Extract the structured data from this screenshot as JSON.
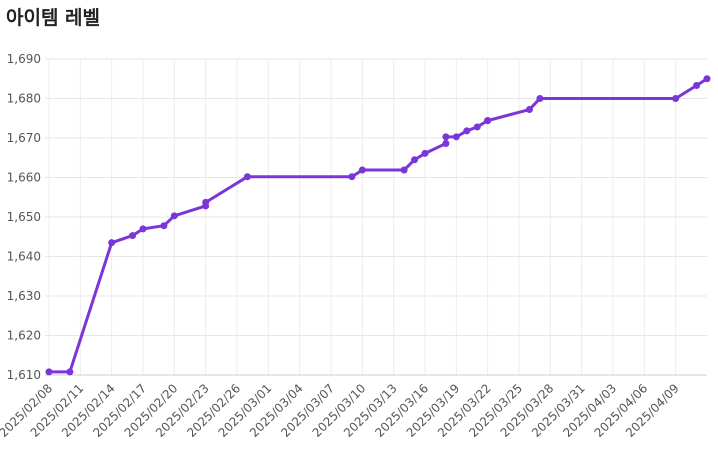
{
  "chart_data": {
    "type": "line",
    "title": "아이템 레벨",
    "x": [
      "2025/02/08",
      "2025/02/10",
      "2025/02/14",
      "2025/02/16",
      "2025/02/17",
      "2025/02/19",
      "2025/02/20",
      "2025/02/23",
      "2025/02/23",
      "2025/02/27",
      "2025/03/09",
      "2025/03/10",
      "2025/03/14",
      "2025/03/15",
      "2025/03/16",
      "2025/03/18",
      "2025/03/18",
      "2025/03/19",
      "2025/03/20",
      "2025/03/21",
      "2025/03/22",
      "2025/03/22",
      "2025/03/26",
      "2025/03/27",
      "2025/04/09",
      "2025/04/11",
      "2025/04/12"
    ],
    "series": [
      {
        "name": "아이템 레벨",
        "color": "#7b35d9",
        "values": [
          1610.8,
          1610.8,
          1643.5,
          1645.3,
          1647,
          1647.8,
          1650.3,
          1652.8,
          1653.7,
          1660.2,
          1660.2,
          1661.9,
          1661.9,
          1664.5,
          1666.1,
          1668.6,
          1670.3,
          1670.3,
          1671.8,
          1672.8,
          1674.4,
          1674.4,
          1677.2,
          1680,
          1680,
          1683.3,
          1685
        ]
      }
    ],
    "xlim": [
      "2025/02/08",
      "2025/04/12"
    ],
    "xticks": [
      "2025/02/08",
      "2025/02/11",
      "2025/02/14",
      "2025/02/17",
      "2025/02/20",
      "2025/02/23",
      "2025/02/26",
      "2025/03/01",
      "2025/03/04",
      "2025/03/07",
      "2025/03/10",
      "2025/03/13",
      "2025/03/16",
      "2025/03/19",
      "2025/03/22",
      "2025/03/25",
      "2025/03/28",
      "2025/03/31",
      "2025/04/03",
      "2025/04/06",
      "2025/04/09"
    ],
    "ylim": [
      1610,
      1690
    ],
    "yticks": [
      {
        "value": 1610,
        "label": "1,610"
      },
      {
        "value": 1620,
        "label": "1,620"
      },
      {
        "value": 1630,
        "label": "1,630"
      },
      {
        "value": 1640,
        "label": "1,640"
      },
      {
        "value": 1650,
        "label": "1,650"
      },
      {
        "value": 1660,
        "label": "1,660"
      },
      {
        "value": 1670,
        "label": "1,670"
      },
      {
        "value": 1680,
        "label": "1,680"
      },
      {
        "value": 1690,
        "label": "1,690"
      }
    ],
    "grid": true
  }
}
